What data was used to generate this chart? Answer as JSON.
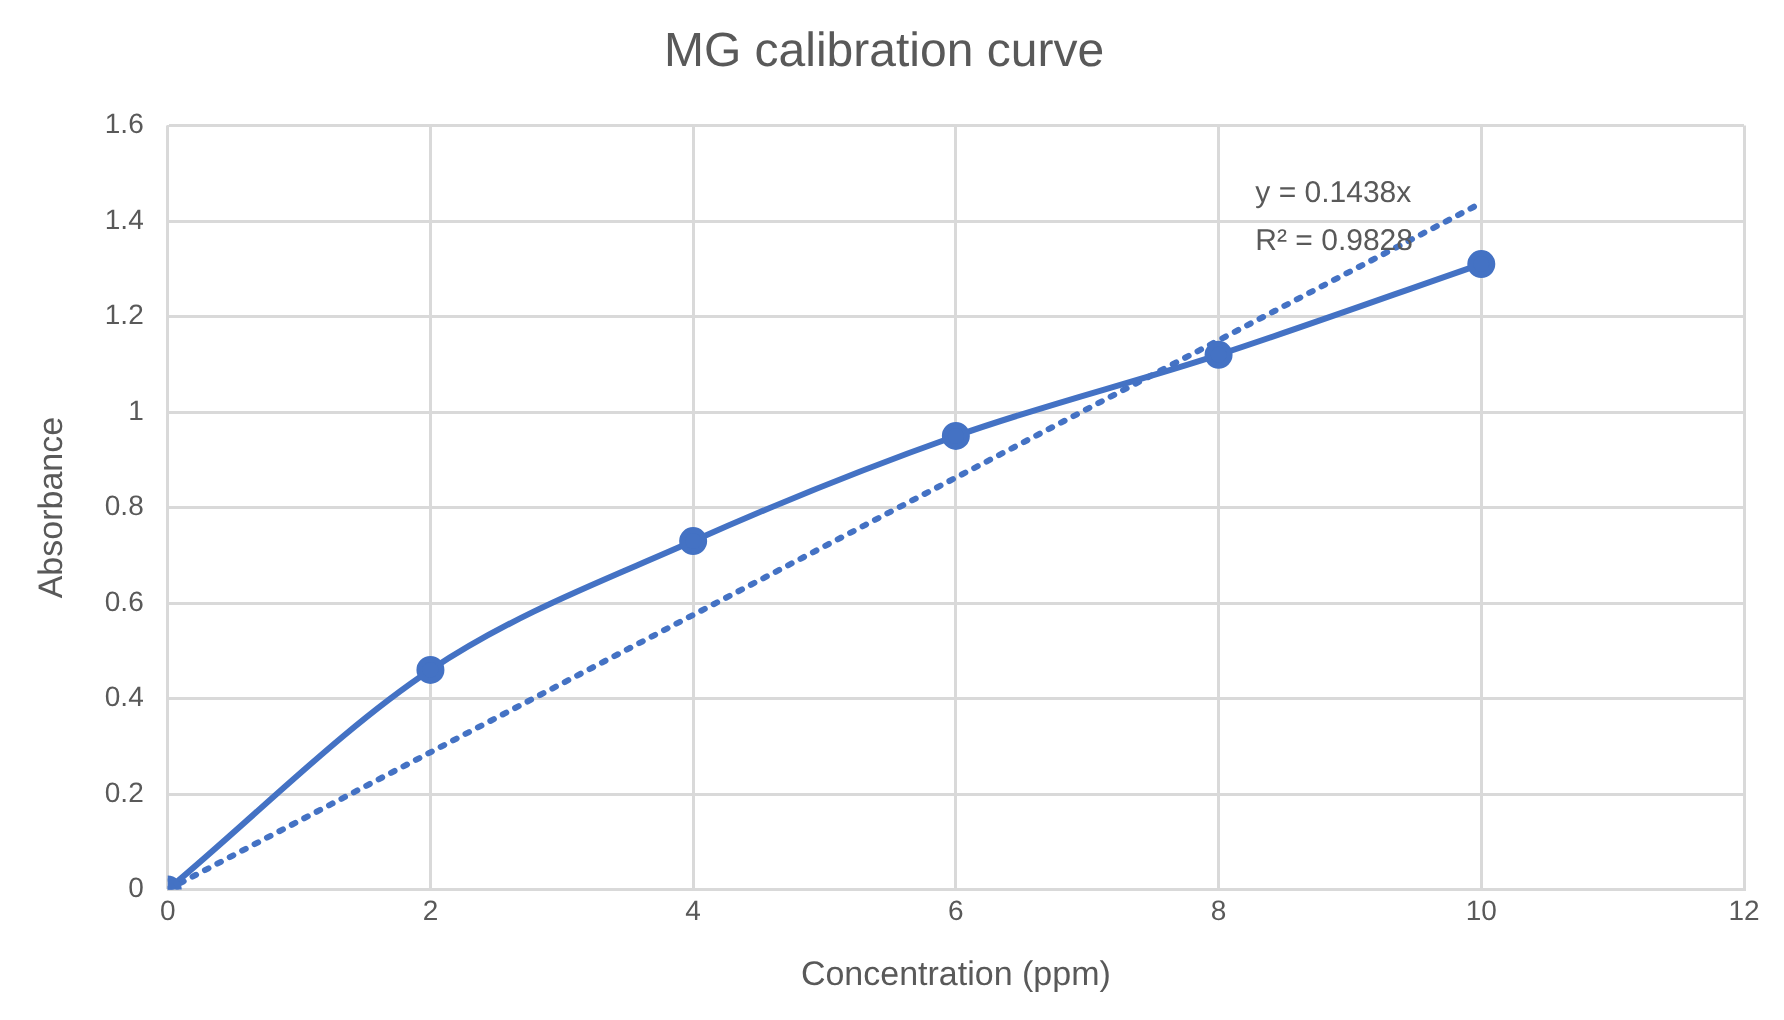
{
  "chart_data": {
    "type": "line",
    "title": "MG calibration curve",
    "xlabel": "Concentration (ppm)",
    "ylabel": "Absorbance",
    "x": [
      0,
      2,
      4,
      6,
      8,
      10
    ],
    "series": [
      {
        "color": "#4472c4",
        "values": [
          0,
          0.46,
          0.73,
          0.95,
          1.12,
          1.31
        ],
        "marker": "circle",
        "line_style": "solid"
      },
      {
        "type": "line",
        "color": "#4472c4",
        "x": [
          0,
          10
        ],
        "values": [
          0,
          1.438
        ],
        "marker": "none",
        "line_style": "dotted"
      }
    ],
    "annotations": [
      "y = 0.1438x",
      "R² = 0.9828"
    ],
    "xlim": [
      0,
      12
    ],
    "xticks": [
      0,
      2,
      4,
      6,
      8,
      10,
      12
    ],
    "ylim": [
      0,
      1.6
    ],
    "yticks": [
      0,
      0.2,
      0.4,
      0.6,
      0.8,
      1,
      1.2,
      1.4,
      1.6
    ],
    "grid": true,
    "legend": false
  }
}
